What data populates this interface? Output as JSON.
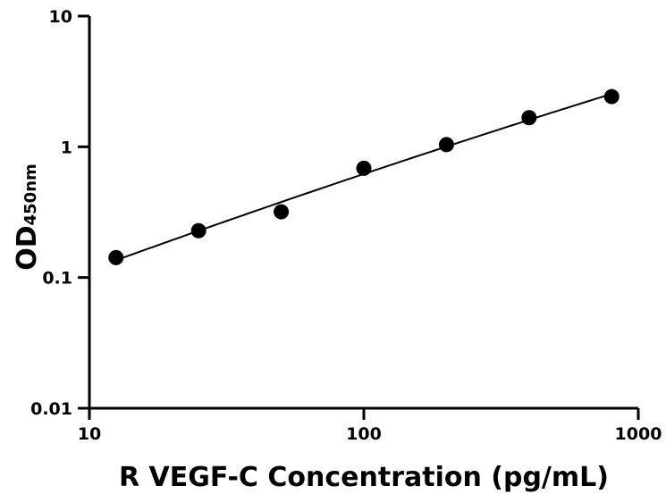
{
  "chart_data": {
    "type": "scatter",
    "title": "",
    "xlabel": "R VEGF-C Concentration (pg/mL)",
    "ylabel_main": "OD",
    "ylabel_sub": "450nm",
    "x_scale": "log",
    "y_scale": "log",
    "xlim": [
      10,
      1000
    ],
    "ylim": [
      0.01,
      10
    ],
    "x_ticks": [
      10,
      100,
      1000
    ],
    "x_tick_labels": [
      "10",
      "100",
      "1000"
    ],
    "y_ticks": [
      0.01,
      0.1,
      1,
      10
    ],
    "y_tick_labels": [
      "0.01",
      "0.1",
      "1",
      "10"
    ],
    "grid": false,
    "legend": "none",
    "series": [
      {
        "points": [
          {
            "x": 12.5,
            "y": 0.142
          },
          {
            "x": 25,
            "y": 0.228
          },
          {
            "x": 50,
            "y": 0.318
          },
          {
            "x": 100,
            "y": 0.685
          },
          {
            "x": 200,
            "y": 1.04
          },
          {
            "x": 400,
            "y": 1.67
          },
          {
            "x": 800,
            "y": 2.42
          }
        ],
        "fit_curve": true,
        "color": "#000000"
      }
    ]
  }
}
